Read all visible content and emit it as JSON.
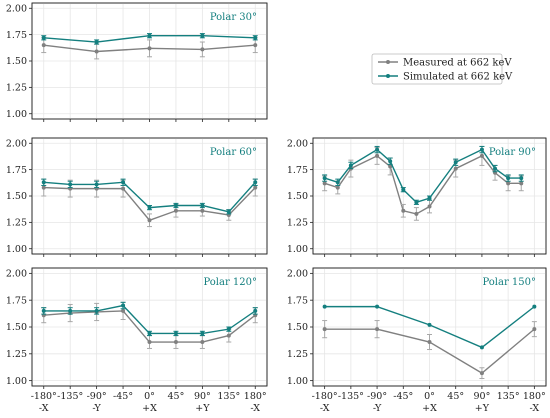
{
  "colors": {
    "measured": "#808080",
    "simulated": "#147f7f",
    "errorbar": "#a8a8a8",
    "title": "#147f7f"
  },
  "legend": {
    "placement": "top-right",
    "entries": [
      "Measured at 662 keV",
      "Simulated at 662 keV"
    ]
  },
  "x_tick_labels_top": [
    "-180°",
    "-135°",
    "-90°",
    "-45°",
    "0°",
    "45°",
    "90°",
    "135°",
    "180°"
  ],
  "x_tick_labels_bottom": [
    "-X",
    "",
    "-Y",
    "",
    "+X",
    "",
    "+Y",
    "",
    "-X"
  ],
  "chart_data": [
    {
      "type": "line",
      "title": "Polar 30°",
      "x": [
        -180,
        -90,
        0,
        90,
        180
      ],
      "ylim": [
        0.95,
        2.05
      ],
      "yticks": [
        "1.00",
        "1.25",
        "1.50",
        "1.75",
        "2.00"
      ],
      "grid": true,
      "series": [
        {
          "name": "Measured at 662 keV",
          "values": [
            1.65,
            1.59,
            1.62,
            1.61,
            1.65
          ],
          "errors": [
            0.07,
            0.07,
            0.08,
            0.07,
            0.07
          ]
        },
        {
          "name": "Simulated at 662 keV",
          "values": [
            1.72,
            1.68,
            1.74,
            1.74,
            1.72
          ],
          "errors": [
            0.02,
            0.02,
            0.02,
            0.02,
            0.02
          ]
        }
      ]
    },
    {
      "type": "line",
      "title": "Polar 60°",
      "x": [
        -180,
        -135,
        -90,
        -45,
        0,
        45,
        90,
        135,
        180
      ],
      "ylim": [
        0.95,
        2.05
      ],
      "yticks": [
        "1.00",
        "1.25",
        "1.50",
        "1.75",
        "2.00"
      ],
      "grid": true,
      "series": [
        {
          "name": "Measured at 662 keV",
          "values": [
            1.58,
            1.57,
            1.57,
            1.57,
            1.27,
            1.36,
            1.36,
            1.32,
            1.58
          ],
          "errors": [
            0.08,
            0.08,
            0.08,
            0.08,
            0.06,
            0.06,
            0.05,
            0.05,
            0.08
          ]
        },
        {
          "name": "Simulated at 662 keV",
          "values": [
            1.63,
            1.61,
            1.61,
            1.63,
            1.39,
            1.41,
            1.41,
            1.35,
            1.63
          ],
          "errors": [
            0.03,
            0.03,
            0.03,
            0.03,
            0.02,
            0.02,
            0.02,
            0.02,
            0.03
          ]
        }
      ]
    },
    {
      "type": "line",
      "title": "Polar 90°",
      "x": [
        -180,
        -157.5,
        -135,
        -112.5,
        -90,
        -67.5,
        -45,
        -22.5,
        0,
        22.5,
        45,
        67.5,
        90,
        112.5,
        135,
        157.5,
        180
      ],
      "ylim": [
        0.95,
        2.05
      ],
      "yticks": [
        "1.00",
        "1.25",
        "1.50",
        "1.75",
        "2.00"
      ],
      "grid": true,
      "series": [
        {
          "name": "Measured at 662 keV",
          "values": [
            1.62,
            1.58,
            1.76,
            1.88,
            1.78,
            1.36,
            1.33,
            1.4,
            1.76,
            1.88,
            1.72,
            1.62,
            1.62
          ],
          "x": [
            -180,
            -157.5,
            -135,
            -90,
            -67.5,
            -45,
            -22.5,
            0,
            45,
            90,
            112.5,
            135,
            157.5
          ],
          "errors": [
            0.07,
            0.06,
            0.08,
            0.08,
            0.08,
            0.06,
            0.06,
            0.06,
            0.08,
            0.09,
            0.07,
            0.07,
            0.07
          ]
        },
        {
          "name": "Simulated at 662 keV",
          "values": [
            1.67,
            1.63,
            1.79,
            1.94,
            1.83,
            1.56,
            1.44,
            1.48,
            1.82,
            1.94,
            1.76,
            1.67,
            1.67
          ],
          "x": [
            -180,
            -157.5,
            -135,
            -90,
            -67.5,
            -45,
            -22.5,
            0,
            45,
            90,
            112.5,
            135,
            157.5
          ],
          "errors": [
            0.03,
            0.03,
            0.03,
            0.03,
            0.03,
            0.02,
            0.02,
            0.02,
            0.03,
            0.03,
            0.03,
            0.03,
            0.03
          ]
        }
      ]
    },
    {
      "type": "line",
      "title": "Polar 120°",
      "x": [
        -180,
        -135,
        -90,
        -45,
        0,
        45,
        90,
        135,
        180
      ],
      "ylim": [
        0.95,
        2.05
      ],
      "yticks": [
        "1.00",
        "1.25",
        "1.50",
        "1.75",
        "2.00"
      ],
      "grid": true,
      "series": [
        {
          "name": "Measured at 662 keV",
          "values": [
            1.61,
            1.63,
            1.64,
            1.65,
            1.36,
            1.36,
            1.36,
            1.42,
            1.61
          ],
          "errors": [
            0.07,
            0.08,
            0.08,
            0.08,
            0.06,
            0.06,
            0.06,
            0.06,
            0.07
          ]
        },
        {
          "name": "Simulated at 662 keV",
          "values": [
            1.65,
            1.65,
            1.65,
            1.7,
            1.44,
            1.44,
            1.44,
            1.48,
            1.65
          ],
          "errors": [
            0.03,
            0.03,
            0.03,
            0.03,
            0.02,
            0.02,
            0.02,
            0.02,
            0.03
          ]
        }
      ]
    },
    {
      "type": "line",
      "title": "Polar 150°",
      "x": [
        -180,
        -90,
        0,
        90,
        180
      ],
      "ylim": [
        0.95,
        2.05
      ],
      "yticks": [
        "1.00",
        "1.25",
        "1.50",
        "1.75",
        "2.00"
      ],
      "grid": true,
      "series": [
        {
          "name": "Measured at 662 keV",
          "values": [
            1.48,
            1.48,
            1.36,
            1.07,
            1.48
          ],
          "errors": [
            0.08,
            0.08,
            0.07,
            0.05,
            0.07
          ]
        },
        {
          "name": "Simulated at 662 keV",
          "values": [
            1.69,
            1.69,
            1.52,
            1.31,
            1.69
          ],
          "errors": [
            0.0,
            0.0,
            0.0,
            0.0,
            0.0
          ]
        }
      ]
    }
  ]
}
